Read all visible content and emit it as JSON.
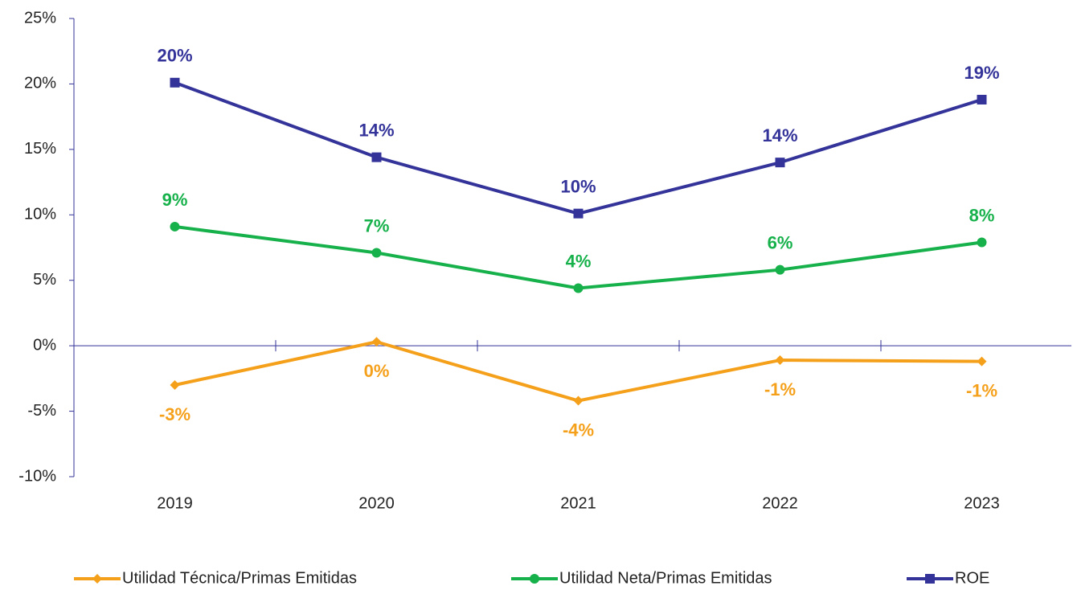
{
  "chart_data": {
    "type": "line",
    "categories": [
      "2019",
      "2020",
      "2021",
      "2022",
      "2023"
    ],
    "series": [
      {
        "name": "Utilidad Técnica/Primas Emitidas",
        "color": "#f5a01a",
        "marker": "diamond",
        "values": [
          -3.0,
          0.3,
          -4.2,
          -1.1,
          -1.2
        ],
        "value_labels": [
          "-3%",
          "0%",
          "-4%",
          "-1%",
          "-1%"
        ]
      },
      {
        "name": "Utilidad Neta/Primas Emitidas",
        "color": "#17b14b",
        "marker": "circle",
        "values": [
          9.1,
          7.1,
          4.4,
          5.8,
          7.9
        ],
        "value_labels": [
          "9%",
          "7%",
          "4%",
          "6%",
          "8%"
        ]
      },
      {
        "name": "ROE",
        "color": "#33339a",
        "marker": "square",
        "values": [
          20.1,
          14.4,
          10.1,
          14.0,
          18.8
        ],
        "value_labels": [
          "20%",
          "14%",
          "10%",
          "14%",
          "19%"
        ]
      }
    ],
    "ylim": [
      -10,
      25
    ],
    "yticks": [
      {
        "value": -10,
        "label": "-10%"
      },
      {
        "value": -5,
        "label": "-5%"
      },
      {
        "value": 0,
        "label": "0%"
      },
      {
        "value": 5,
        "label": "5%"
      },
      {
        "value": 10,
        "label": "10%"
      },
      {
        "value": 15,
        "label": "15%"
      },
      {
        "value": 20,
        "label": "20%"
      },
      {
        "value": 25,
        "label": "25%"
      }
    ],
    "legend": "bottom"
  }
}
